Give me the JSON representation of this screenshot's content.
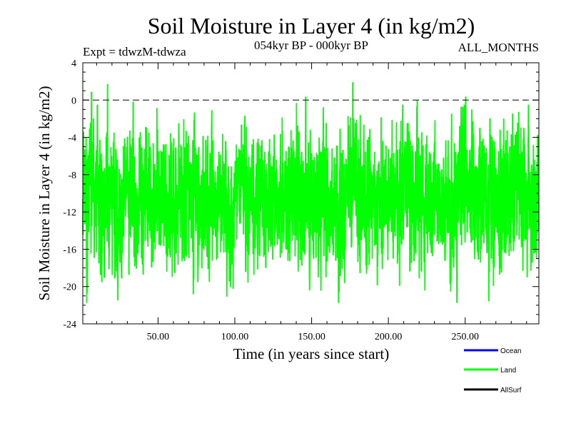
{
  "chart_data": {
    "type": "line",
    "title": "Soil Moisture in Layer 4 (in kg/m2)",
    "subtitle": "054kyr BP - 000kyr BP",
    "expt_label": "Expt = tdwzM-tdwza",
    "months_label": "ALL_MONTHS",
    "xlabel": "Time (in years since start)",
    "ylabel": "Soil Moisture in Layer 4 (in kg/m2)",
    "xlim": [
      1,
      298
    ],
    "ylim": [
      -24,
      4
    ],
    "x_ticks": [
      50,
      100,
      150,
      200,
      250
    ],
    "x_tick_labels": [
      "50.00",
      "100.00",
      "150.00",
      "200.00",
      "250.00"
    ],
    "y_ticks": [
      4,
      0,
      -4,
      -8,
      -12,
      -16,
      -20,
      -24
    ],
    "y_tick_labels": [
      "4",
      "0",
      "-4",
      "-8",
      "-12",
      "-16",
      "-20",
      "-24"
    ],
    "reference_line": {
      "y": 0,
      "style": "dashed"
    },
    "series": [
      {
        "name": "Ocean",
        "color": "#0000ff",
        "values": []
      },
      {
        "name": "Land",
        "color": "#00ff00",
        "samples_per_year": 12,
        "mean": -10,
        "min": -21.7,
        "max": 2.2,
        "values": []
      },
      {
        "name": "AllSurf",
        "color": "#000000",
        "values": []
      }
    ]
  }
}
